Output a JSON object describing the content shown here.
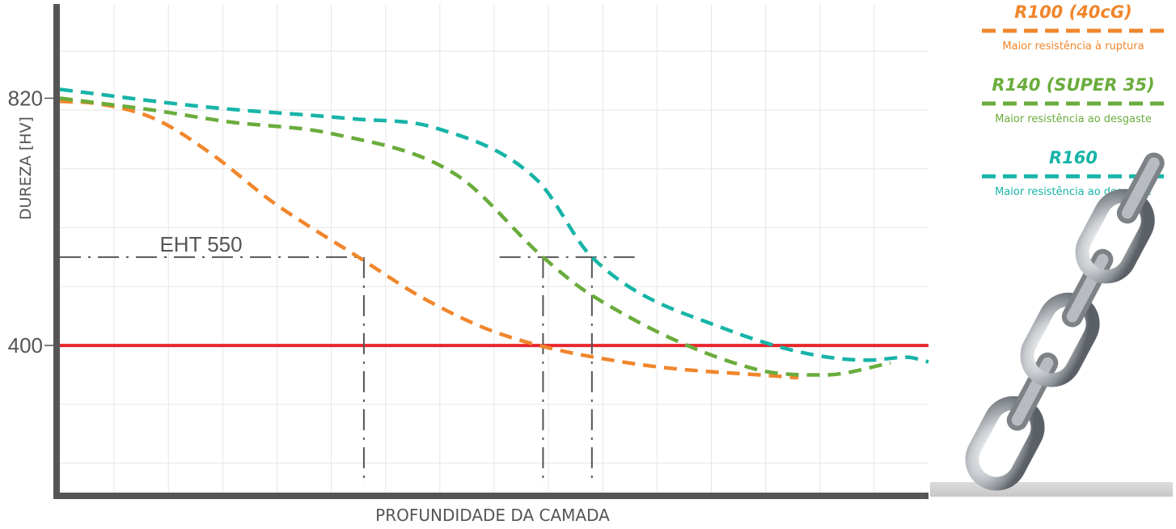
{
  "chart_data": {
    "type": "line",
    "title": "",
    "xlabel": "PROFUNDIDADE DA CAMADA",
    "ylabel": "DUREZA [HV]",
    "ylim": [
      150,
      980
    ],
    "xlim": [
      0,
      16
    ],
    "y_ticks": [
      {
        "value": 820,
        "label": "820"
      },
      {
        "value": 400,
        "label": "400"
      }
    ],
    "grid": true,
    "legend_position": "right",
    "colors": {
      "R100": "#f0862c",
      "R140": "#6aac3c",
      "R160": "#17b4a8",
      "threshold": "#e8262c",
      "annotation": "#555555",
      "axis": "#555555",
      "grid": "#e6e6e6"
    },
    "series": [
      {
        "key": "R100",
        "name": "R100 (40cG)",
        "description": "Maior resistência à ruptura",
        "color": "#f0862c",
        "x": [
          0,
          0.75,
          1.75,
          2.8,
          3.9,
          5.5,
          6.7,
          8.1,
          10.5,
          13.6
        ],
        "y": [
          815,
          810,
          785,
          725,
          645,
          550,
          480,
          420,
          370,
          345
        ]
      },
      {
        "key": "R140",
        "name": "R140 (SUPER 35)",
        "description": "Maior resistência ao desgaste",
        "color": "#6aac3c",
        "x": [
          0,
          1.7,
          3.1,
          5.0,
          7.3,
          8.9,
          9.8,
          12.8,
          14.1,
          15.3
        ],
        "y": [
          820,
          800,
          780,
          760,
          690,
          550,
          485,
          360,
          350,
          370
        ]
      },
      {
        "key": "R160",
        "name": "R160",
        "description": "Maior resistência ao desgaste",
        "color": "#17b4a8",
        "x": [
          0,
          2.7,
          5.4,
          6.9,
          8.8,
          9.8,
          12.2,
          14.9,
          15.6,
          16.0
        ],
        "y": [
          835,
          805,
          785,
          770,
          680,
          550,
          430,
          375,
          380,
          372
        ]
      }
    ],
    "threshold": {
      "value": 400
    },
    "annotations": [
      {
        "type": "ht_line",
        "label": "EHT 550",
        "y": 550,
        "x_start": 0,
        "x_end": 5.6,
        "drop_at_x": 5.6
      },
      {
        "type": "ht_line",
        "label": "",
        "y": 550,
        "x_start": 8.1,
        "x_end": 10.6,
        "drop_at_x": 8.9
      },
      {
        "type": "vline",
        "x": 9.8
      }
    ]
  }
}
